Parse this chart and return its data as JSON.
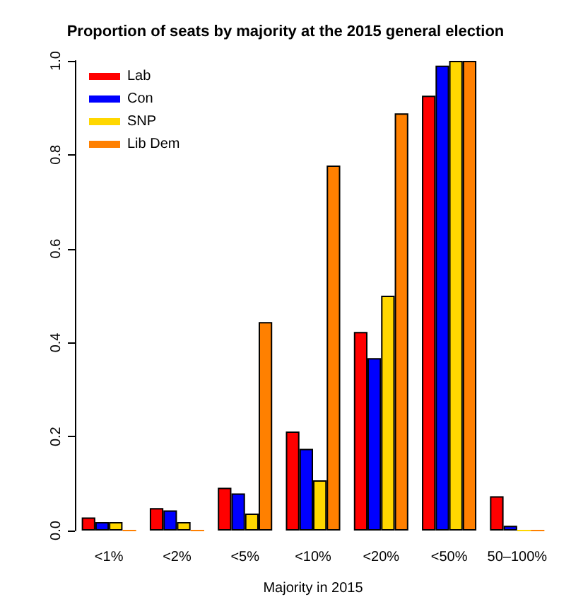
{
  "chart_data": {
    "type": "bar",
    "title": "Proportion of seats by majority at the 2015 general election",
    "xlabel": "Majority in 2015",
    "categories": [
      "<1%",
      "<2%",
      "<5%",
      "<10%",
      "<20%",
      "<50%",
      "50–100%"
    ],
    "series": [
      {
        "name": "Lab",
        "color": "#ff0000",
        "values": [
          0.028,
          0.048,
          0.091,
          0.211,
          0.423,
          0.926,
          0.073
        ]
      },
      {
        "name": "Con",
        "color": "#0000ff",
        "values": [
          0.018,
          0.043,
          0.079,
          0.174,
          0.367,
          0.99,
          0.01
        ]
      },
      {
        "name": "SNP",
        "color": "#ffd700",
        "values": [
          0.018,
          0.018,
          0.036,
          0.107,
          0.5,
          1.0,
          0
        ]
      },
      {
        "name": "Lib Dem",
        "color": "#ff8000",
        "values": [
          0,
          0,
          0.444,
          0.777,
          0.888,
          1.0,
          0
        ]
      }
    ],
    "ylim": [
      0,
      1
    ],
    "yticks": [
      {
        "value": 0,
        "label": "0.0"
      },
      {
        "value": 0.2,
        "label": "0.2"
      },
      {
        "value": 0.4,
        "label": "0.4"
      },
      {
        "value": 0.6,
        "label": "0.6"
      },
      {
        "value": 0.8,
        "label": "0.8"
      },
      {
        "value": 1,
        "label": "1.0"
      }
    ],
    "grid": false,
    "legend": "top left"
  }
}
